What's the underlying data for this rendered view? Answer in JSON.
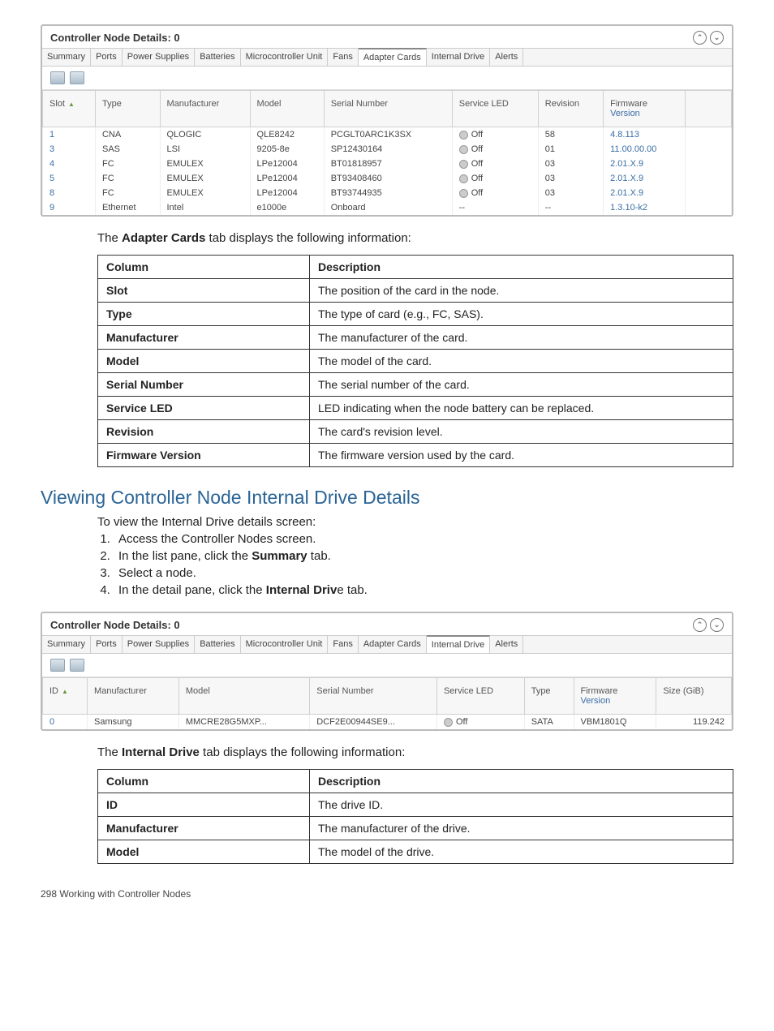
{
  "panel1": {
    "title": "Controller Node Details: 0",
    "tabs": [
      "Summary",
      "Ports",
      "Power Supplies",
      "Batteries",
      "Microcontroller Unit",
      "Fans",
      "Adapter Cards",
      "Internal Drive",
      "Alerts"
    ],
    "active_tab": 6,
    "columns": [
      "Slot",
      "Type",
      "Manufacturer",
      "Model",
      "Serial Number",
      "Service LED",
      "Revision",
      "Firmware Version"
    ],
    "rows": [
      {
        "slot": "1",
        "type": "CNA",
        "mfr": "QLOGIC",
        "model": "QLE8242",
        "serial": "PCGLT0ARC1K3SX",
        "led": "Off",
        "rev": "58",
        "fw": "4.8.113"
      },
      {
        "slot": "3",
        "type": "SAS",
        "mfr": "LSI",
        "model": "9205-8e",
        "serial": "SP12430164",
        "led": "Off",
        "rev": "01",
        "fw": "11.00.00.00"
      },
      {
        "slot": "4",
        "type": "FC",
        "mfr": "EMULEX",
        "model": "LPe12004",
        "serial": "BT01818957",
        "led": "Off",
        "rev": "03",
        "fw": "2.01.X.9"
      },
      {
        "slot": "5",
        "type": "FC",
        "mfr": "EMULEX",
        "model": "LPe12004",
        "serial": "BT93408460",
        "led": "Off",
        "rev": "03",
        "fw": "2.01.X.9"
      },
      {
        "slot": "8",
        "type": "FC",
        "mfr": "EMULEX",
        "model": "LPe12004",
        "serial": "BT93744935",
        "led": "Off",
        "rev": "03",
        "fw": "2.01.X.9"
      },
      {
        "slot": "9",
        "type": "Ethernet",
        "mfr": "Intel",
        "model": "e1000e",
        "serial": "Onboard",
        "led": "--",
        "rev": "--",
        "fw": "1.3.10-k2"
      }
    ]
  },
  "doc": {
    "intro1_pre": "The ",
    "intro1_b": "Adapter Cards",
    "intro1_post": "  tab displays the following information:",
    "table1_h1": "Column",
    "table1_h2": "Description",
    "table1_rows": [
      {
        "k": "Slot",
        "v": "The position of the card in the node."
      },
      {
        "k": "Type",
        "v": "The type of card (e.g., FC, SAS)."
      },
      {
        "k": "Manufacturer",
        "v": "The manufacturer of the card."
      },
      {
        "k": "Model",
        "v": "The model of the card."
      },
      {
        "k": "Serial Number",
        "v": "The serial number of the card."
      },
      {
        "k": "Service LED",
        "v": "LED indicating when the node battery can be replaced."
      },
      {
        "k": "Revision",
        "v": "The card's revision level."
      },
      {
        "k": "Firmware Version",
        "v": "The firmware version used by the card."
      }
    ],
    "section_title": "Viewing Controller Node Internal Drive Details",
    "intro2": "To view the Internal Drive details screen:",
    "steps": [
      "Access the Controller Nodes screen.",
      "In the list pane, click the <b>Summary</b> tab.",
      "Select a node.",
      "In the detail pane, click the <b>Internal Driv</b>e tab."
    ],
    "intro3_pre": "The ",
    "intro3_b": "Internal Drive",
    "intro3_post": "  tab displays the following information:",
    "table2_rows": [
      {
        "k": "ID",
        "v": "The drive ID."
      },
      {
        "k": "Manufacturer",
        "v": "The manufacturer of the drive."
      },
      {
        "k": "Model",
        "v": "The model of the drive."
      }
    ],
    "footer": "298   Working with Controller Nodes"
  },
  "panel2": {
    "title": "Controller Node Details: 0",
    "tabs": [
      "Summary",
      "Ports",
      "Power Supplies",
      "Batteries",
      "Microcontroller Unit",
      "Fans",
      "Adapter Cards",
      "Internal Drive",
      "Alerts"
    ],
    "active_tab": 7,
    "columns": [
      "ID",
      "Manufacturer",
      "Model",
      "Serial Number",
      "Service LED",
      "Type",
      "Firmware Version",
      "Size (GiB)"
    ],
    "rows": [
      {
        "id": "0",
        "mfr": "Samsung",
        "model": "MMCRE28G5MXP...",
        "serial": "DCF2E00944SE9...",
        "led": "Off",
        "type": "SATA",
        "fw": "VBM1801Q",
        "size": "119.242"
      }
    ]
  }
}
